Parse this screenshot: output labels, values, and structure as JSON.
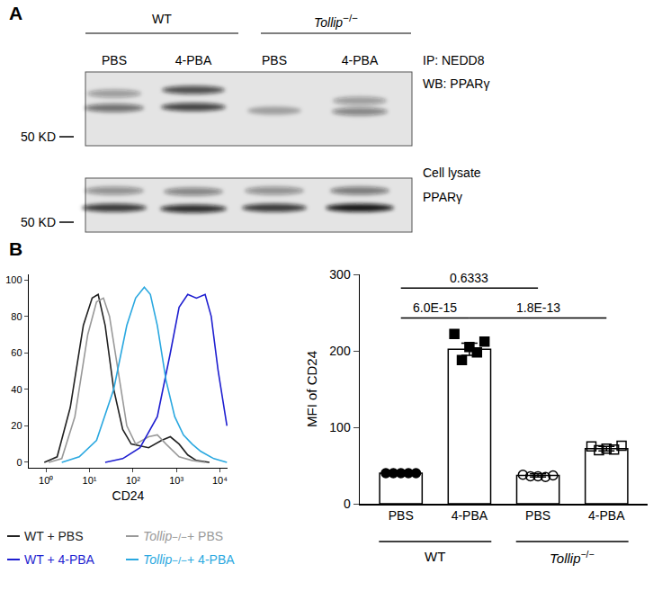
{
  "blot": {
    "label": "A",
    "groups": [
      {
        "label": "WT",
        "lanes": [
          "PBS",
          "4-PBA"
        ]
      },
      {
        "label": "Tollip−/−",
        "lanes": [
          "PBS",
          "4-PBA"
        ]
      }
    ],
    "panels": [
      {
        "labels": [
          "IP: NEDD8",
          "WB: PPARγ"
        ],
        "marker": "50 KD"
      },
      {
        "labels": [
          "Cell lysate",
          "PPARγ"
        ],
        "marker": "50 KD"
      }
    ]
  },
  "panel_label": "B",
  "chart_data": [
    {
      "type": "line",
      "xlabel": "CD24",
      "log": "x",
      "grid": false,
      "xlim": [
        0.4,
        15000
      ],
      "xticks": [
        {
          "value": 1,
          "label": "10⁰"
        },
        {
          "value": 10,
          "label": "10¹"
        },
        {
          "value": 100,
          "label": "10²"
        },
        {
          "value": 1000,
          "label": "10³"
        },
        {
          "value": 10000,
          "label": "10⁴"
        }
      ],
      "ylim": [
        -3,
        103
      ],
      "yticks": [
        0,
        20,
        40,
        60,
        80,
        100
      ],
      "series": [
        {
          "name": "WT + PBS",
          "color": "#222222",
          "x": [
            0.91,
            1.8,
            3.6,
            7.2,
            11.5,
            15.8,
            22.9,
            36,
            58,
            91,
            229,
            457,
            724,
            1150,
            1820,
            2880,
            5750
          ],
          "values": [
            0,
            3,
            30,
            75,
            90,
            92,
            75,
            40,
            18,
            10,
            8,
            12,
            14,
            10,
            4,
            1,
            0
          ]
        },
        {
          "name": "Tollip−/− + PBS",
          "color": "#999999",
          "x": [
            1.15,
            2.3,
            4.6,
            9.1,
            14.5,
            20.9,
            28.8,
            45.7,
            72,
            115,
            229,
            363,
            575,
            1150,
            2290,
            4570
          ],
          "values": [
            0,
            2,
            25,
            70,
            88,
            90,
            80,
            50,
            20,
            10,
            14,
            15,
            10,
            3,
            1,
            0
          ]
        },
        {
          "name": "WT + 4-PBA",
          "color": "#1f1fd0",
          "x": [
            22.9,
            58,
            145,
            363,
            724,
            1150,
            1820,
            2880,
            4570,
            6310,
            9120,
            14500
          ],
          "values": [
            0,
            2,
            8,
            25,
            60,
            85,
            92,
            90,
            92,
            80,
            50,
            20
          ]
        },
        {
          "name": "Tollip−/− + 4-PBA",
          "color": "#2aa8e0",
          "x": [
            2.3,
            5.8,
            14.5,
            36,
            72,
            115,
            182,
            251,
            363,
            575,
            912,
            1450,
            2290,
            3630,
            7240,
            14500
          ],
          "values": [
            0,
            3,
            12,
            40,
            75,
            90,
            96,
            92,
            75,
            45,
            25,
            15,
            10,
            6,
            2,
            0
          ]
        }
      ]
    },
    {
      "type": "bar",
      "ylabel": "MFI of CD24",
      "grid": false,
      "color": "#ffffff",
      "categories": [
        "PBS",
        "4-PBA",
        "PBS",
        "4-PBA"
      ],
      "groups": [
        {
          "label": "WT",
          "span": [
            0,
            1
          ]
        },
        {
          "label": "Tollip−/−",
          "span": [
            2,
            3
          ]
        }
      ],
      "values": [
        40,
        202,
        37,
        72
      ],
      "errors": [
        1,
        8,
        2,
        3
      ],
      "points": [
        [
          40,
          40,
          40,
          40,
          40
        ],
        [
          222,
          188,
          205,
          198,
          212
        ],
        [
          38,
          36,
          36,
          35,
          37
        ],
        [
          75,
          70,
          72,
          71,
          76
        ]
      ],
      "marker": [
        "circle",
        "square",
        "circle-open",
        "square-open"
      ],
      "ylim": [
        0,
        300
      ],
      "yticks": [
        0,
        100,
        200,
        300
      ],
      "annotations": [
        {
          "text": "0.6333",
          "from": 0,
          "to": 2,
          "y": 282
        },
        {
          "text": "6.0E-15",
          "from": 0,
          "to": 1,
          "y": 243
        },
        {
          "text": "1.8E-13",
          "from": 1,
          "to": 3,
          "y": 243
        }
      ]
    }
  ]
}
